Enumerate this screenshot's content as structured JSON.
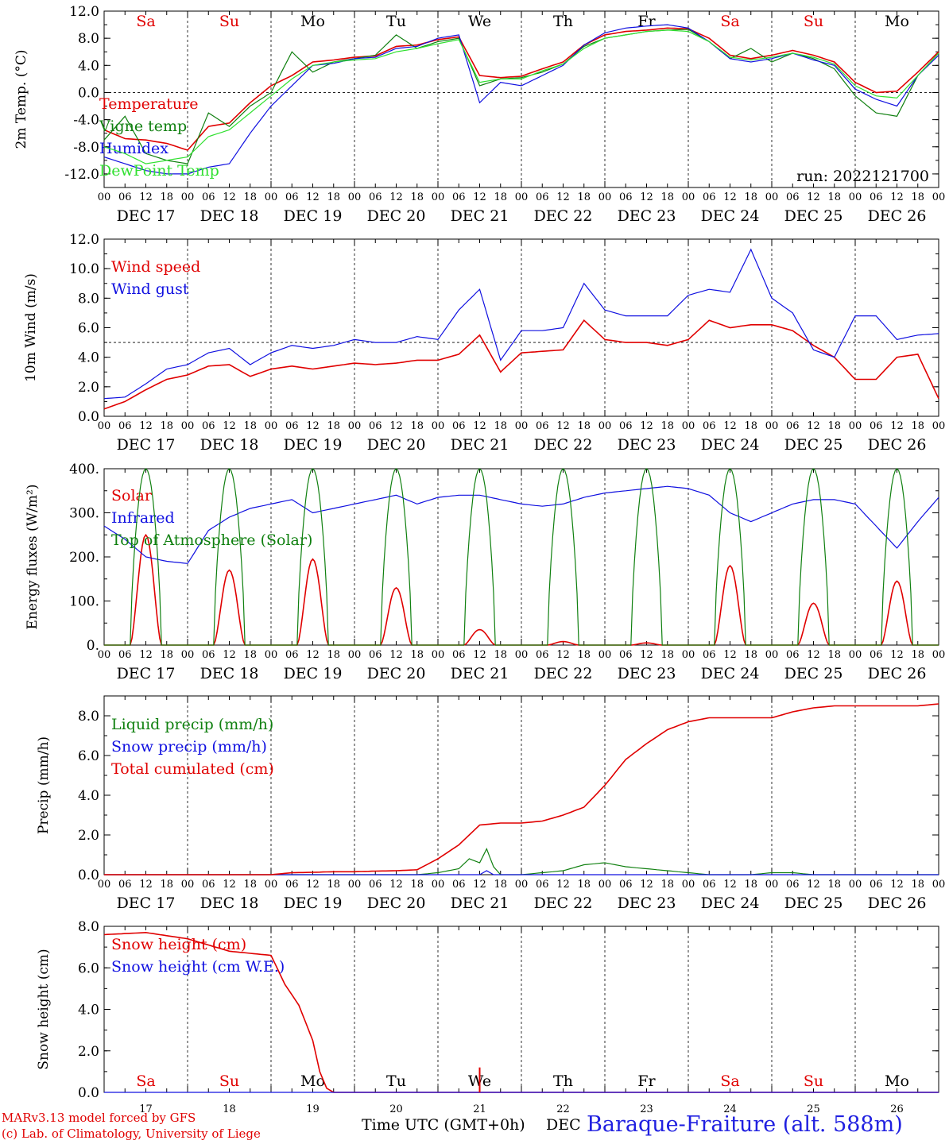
{
  "chart_data": [
    {
      "type": "line",
      "ylabel": "2m Temp. (°C)",
      "ylim": [
        -14,
        12
      ],
      "yticks": [
        12.0,
        8.0,
        4.0,
        0.0,
        -4.0,
        -8.0,
        -12.0
      ],
      "ytick_labels": [
        "12.0",
        "8.0",
        "4.0",
        "0.0",
        "-4.0",
        "-8.0",
        "-12.0"
      ],
      "zero_line": 0,
      "weekday_labels": [
        "Sa",
        "Su",
        "Mo",
        "Tu",
        "We",
        "Th",
        "Fr",
        "Sa",
        "Su",
        "Mo"
      ],
      "annotation": "run: 2022121700",
      "x_hours": [
        0,
        6,
        12,
        18,
        24,
        30,
        36,
        42,
        48,
        54,
        60,
        66,
        72,
        78,
        84,
        90,
        96,
        102,
        108,
        114,
        120,
        126,
        132,
        138,
        144,
        150,
        156,
        162,
        168,
        174,
        180,
        186,
        192,
        198,
        204,
        210,
        216,
        222,
        228,
        234,
        240
      ],
      "series": [
        {
          "name": "Temperature",
          "color": "#e00000",
          "values": [
            -5.5,
            -6.8,
            -7.0,
            -7.5,
            -8.5,
            -5.0,
            -4.5,
            -1.5,
            1.0,
            2.5,
            4.5,
            4.8,
            5.2,
            5.4,
            6.8,
            7.0,
            7.8,
            8.2,
            2.5,
            2.2,
            2.4,
            3.5,
            4.5,
            7.0,
            8.5,
            9.0,
            9.2,
            9.5,
            9.4,
            8.0,
            5.5,
            5.0,
            5.5,
            6.2,
            5.5,
            4.5,
            1.5,
            0.0,
            0.2,
            3.0,
            6.0
          ]
        },
        {
          "name": "Vigne temp",
          "color": "#108010",
          "values": [
            -7.0,
            -3.5,
            -9.0,
            -10.0,
            -10.5,
            -3.0,
            -5.0,
            -2.0,
            0.0,
            6.0,
            3.0,
            4.5,
            5.0,
            5.5,
            8.5,
            6.5,
            7.5,
            8.0,
            1.0,
            2.0,
            2.2,
            3.0,
            4.2,
            6.8,
            8.0,
            8.5,
            9.0,
            9.2,
            9.3,
            7.5,
            5.0,
            6.5,
            4.5,
            5.8,
            5.0,
            3.5,
            -0.5,
            -3.0,
            -3.5,
            2.5,
            5.8
          ]
        },
        {
          "name": "Humidex",
          "color": "#1010e0",
          "values": [
            -9.5,
            -10.5,
            -11.5,
            -12.0,
            -12.0,
            -11.0,
            -10.5,
            -6.0,
            -2.0,
            1.0,
            4.0,
            4.3,
            5.0,
            5.2,
            6.5,
            6.8,
            8.0,
            8.5,
            -1.5,
            1.5,
            1.0,
            2.5,
            4.0,
            7.0,
            8.8,
            9.5,
            9.8,
            10.0,
            9.5,
            7.5,
            5.0,
            4.5,
            5.0,
            5.8,
            4.8,
            4.0,
            0.5,
            -1.0,
            -2.0,
            2.5,
            5.5
          ]
        },
        {
          "name": "DewPoint Temp",
          "color": "#30e030",
          "values": [
            -8.0,
            -9.0,
            -10.5,
            -10.0,
            -9.5,
            -6.5,
            -5.5,
            -3.0,
            -0.5,
            2.0,
            4.0,
            4.5,
            4.8,
            5.0,
            6.0,
            6.5,
            7.2,
            7.8,
            1.5,
            2.0,
            2.0,
            3.2,
            4.2,
            6.5,
            8.0,
            8.5,
            9.0,
            9.2,
            9.0,
            7.5,
            5.2,
            4.8,
            5.2,
            5.8,
            5.2,
            4.2,
            1.0,
            -0.5,
            -0.8,
            2.5,
            5.8
          ]
        }
      ]
    },
    {
      "type": "line",
      "ylabel": "10m Wind (m/s)",
      "ylim": [
        0,
        12
      ],
      "yticks": [
        0,
        2,
        4,
        6,
        8,
        10,
        12
      ],
      "ytick_labels": [
        "0.0",
        "2.0",
        "4.0",
        "6.0",
        "8.0",
        "10.0",
        "12.0"
      ],
      "reference_line": 5.0,
      "x_hours": [
        0,
        6,
        12,
        18,
        24,
        30,
        36,
        42,
        48,
        54,
        60,
        66,
        72,
        78,
        84,
        90,
        96,
        102,
        108,
        114,
        120,
        126,
        132,
        138,
        144,
        150,
        156,
        162,
        168,
        174,
        180,
        186,
        192,
        198,
        204,
        210,
        216,
        222,
        228,
        234,
        240
      ],
      "series": [
        {
          "name": "Wind speed",
          "color": "#e00000",
          "values": [
            0.5,
            1.0,
            1.8,
            2.5,
            2.8,
            3.4,
            3.5,
            2.7,
            3.2,
            3.4,
            3.2,
            3.4,
            3.6,
            3.5,
            3.6,
            3.8,
            3.8,
            4.2,
            5.5,
            3.0,
            4.3,
            4.4,
            4.5,
            6.5,
            5.2,
            5.0,
            5.0,
            4.8,
            5.2,
            6.5,
            6.0,
            6.2,
            6.2,
            5.8,
            4.8,
            4.0,
            2.5,
            2.5,
            4.0,
            4.2,
            1.2
          ]
        },
        {
          "name": "Wind gust",
          "color": "#1010e0",
          "values": [
            1.2,
            1.3,
            2.2,
            3.2,
            3.5,
            4.3,
            4.6,
            3.5,
            4.3,
            4.8,
            4.6,
            4.8,
            5.2,
            5.0,
            5.0,
            5.4,
            5.2,
            7.2,
            8.6,
            3.8,
            5.8,
            5.8,
            6.0,
            9.0,
            7.2,
            6.8,
            6.8,
            6.8,
            8.2,
            8.6,
            8.4,
            11.3,
            8.0,
            7.0,
            4.5,
            4.0,
            6.8,
            6.8,
            5.2,
            5.5,
            5.6
          ]
        }
      ]
    },
    {
      "type": "line",
      "ylabel": "Energy fluxes (W/m²)",
      "ylim": [
        0,
        400
      ],
      "yticks": [
        0,
        100,
        200,
        300,
        400
      ],
      "ytick_labels": [
        "0.",
        "100.",
        "200.",
        "300.",
        "400."
      ],
      "series": [
        {
          "name": "Solar",
          "color": "#e00000",
          "day_peaks": [
            250,
            170,
            195,
            130,
            35,
            8,
            5,
            180,
            95,
            145
          ]
        },
        {
          "name": "Infrared",
          "color": "#1010e0",
          "x_hours": [
            0,
            6,
            12,
            18,
            24,
            30,
            36,
            42,
            48,
            54,
            60,
            66,
            72,
            78,
            84,
            90,
            96,
            102,
            108,
            114,
            120,
            126,
            132,
            138,
            144,
            150,
            156,
            162,
            168,
            174,
            180,
            186,
            192,
            198,
            204,
            210,
            216,
            222,
            228,
            234,
            240
          ],
          "values": [
            270,
            240,
            200,
            190,
            185,
            260,
            290,
            310,
            320,
            330,
            300,
            310,
            320,
            330,
            340,
            320,
            335,
            340,
            340,
            330,
            320,
            315,
            320,
            335,
            345,
            350,
            355,
            360,
            355,
            340,
            300,
            280,
            300,
            320,
            330,
            330,
            320,
            270,
            220,
            280,
            335
          ]
        },
        {
          "name": "Top of Atmosphere (Solar)",
          "color": "#108010",
          "day_peaks": [
            400,
            400,
            400,
            400,
            400,
            400,
            400,
            400,
            400,
            400
          ]
        }
      ]
    },
    {
      "type": "line",
      "ylabel": "Precip (mm/h)",
      "ylim": [
        0,
        9
      ],
      "yticks": [
        0,
        2,
        4,
        6,
        8
      ],
      "ytick_labels": [
        "0.0",
        "2.0",
        "4.0",
        "6.0",
        "8.0"
      ],
      "series": [
        {
          "name": "Liquid precip (mm/h)",
          "color": "#108010",
          "x_hours": [
            0,
            90,
            96,
            102,
            105,
            108,
            110,
            112,
            114,
            120,
            126,
            132,
            138,
            144,
            150,
            156,
            162,
            168,
            174,
            180,
            186,
            192,
            198,
            204,
            210,
            216,
            222,
            228,
            234,
            240
          ],
          "values": [
            0,
            0,
            0.1,
            0.3,
            0.8,
            0.6,
            1.3,
            0.4,
            0,
            0,
            0.1,
            0.2,
            0.5,
            0.6,
            0.4,
            0.3,
            0.2,
            0.1,
            0,
            0,
            0,
            0.1,
            0.1,
            0,
            0,
            0,
            0,
            0,
            0,
            0
          ]
        },
        {
          "name": "Snow precip (mm/h)",
          "color": "#1010e0",
          "x_hours": [
            0,
            108,
            110,
            112,
            240
          ],
          "values": [
            0,
            0,
            0.2,
            0,
            0
          ]
        },
        {
          "name": "Total cumulated (cm)",
          "color": "#e00000",
          "x_hours": [
            0,
            48,
            54,
            60,
            66,
            72,
            78,
            84,
            90,
            96,
            102,
            108,
            114,
            120,
            126,
            132,
            138,
            144,
            150,
            156,
            162,
            168,
            174,
            180,
            186,
            192,
            198,
            204,
            210,
            216,
            222,
            228,
            234,
            240
          ],
          "values": [
            0,
            0,
            0.1,
            0.12,
            0.15,
            0.15,
            0.18,
            0.2,
            0.25,
            0.8,
            1.5,
            2.5,
            2.6,
            2.6,
            2.7,
            3.0,
            3.4,
            4.5,
            5.8,
            6.6,
            7.3,
            7.7,
            7.9,
            7.9,
            7.9,
            7.9,
            8.2,
            8.4,
            8.5,
            8.5,
            8.5,
            8.5,
            8.5,
            8.6
          ]
        }
      ]
    },
    {
      "type": "line",
      "ylabel": "Snow height (cm)",
      "ylim": [
        0,
        8
      ],
      "yticks": [
        0,
        2,
        4,
        6,
        8
      ],
      "ytick_labels": [
        "0.0",
        "2.0",
        "4.0",
        "6.0",
        "8.0"
      ],
      "weekday_labels": [
        "Sa",
        "Su",
        "Mo",
        "Tu",
        "We",
        "Th",
        "Fr",
        "Sa",
        "Su",
        "Mo"
      ],
      "day_numbers": [
        "17",
        "18",
        "19",
        "20",
        "21",
        "22",
        "23",
        "24",
        "25",
        "26"
      ],
      "series": [
        {
          "name": "Snow height (cm)",
          "color": "#e00000",
          "x_hours": [
            0,
            12,
            24,
            36,
            48,
            52,
            56,
            60,
            62,
            64,
            66,
            240
          ],
          "values": [
            7.6,
            7.7,
            7.4,
            6.8,
            6.6,
            5.2,
            4.2,
            2.5,
            1.0,
            0.2,
            0,
            0
          ]
        },
        {
          "name": "Snow height (cm W.E.)",
          "color": "#1010e0",
          "x_hours": [
            0,
            240
          ],
          "values": [
            0,
            0
          ]
        }
      ],
      "spike": {
        "hour": 108,
        "value": 1.2
      }
    }
  ],
  "axis": {
    "hour_labels": [
      "00",
      "06",
      "12",
      "18"
    ],
    "final_hour_label": "00",
    "date_labels": [
      "DEC 17",
      "DEC 18",
      "DEC 19",
      "DEC 20",
      "DEC 21",
      "DEC 22",
      "DEC 23",
      "DEC 24",
      "DEC 25",
      "DEC 26"
    ],
    "weekend_color": "#e00000",
    "weekday_color": "#000000"
  },
  "footer": {
    "credit_line1": "MARv3.13 model forced by GFS",
    "credit_line2": "(c) Lab. of Climatology, University of Liege",
    "xaxis_title": "Time UTC (GMT+0h)",
    "month": "DEC",
    "station": "Baraque-Fraiture (alt. 588m)"
  }
}
